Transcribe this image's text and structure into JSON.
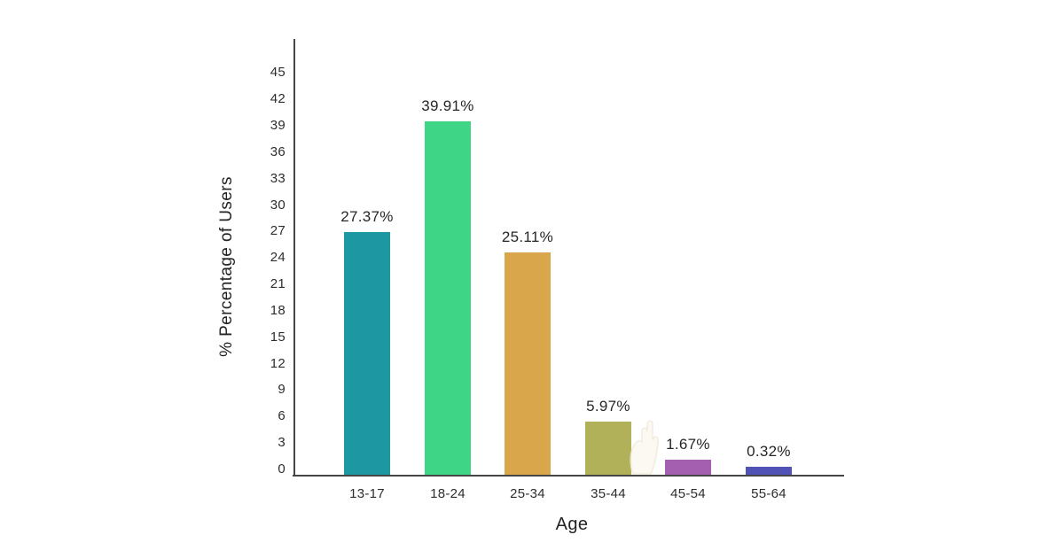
{
  "chart_data": {
    "type": "bar",
    "categories": [
      "13-17",
      "18-24",
      "25-34",
      "35-44",
      "45-54",
      "55-64"
    ],
    "values": [
      27.37,
      39.91,
      25.11,
      5.97,
      1.67,
      0.32
    ],
    "value_labels": [
      "27.37%",
      "39.91%",
      "25.11%",
      "5.97%",
      "1.67%",
      "0.32%"
    ],
    "bar_colors": [
      "#1d98a3",
      "#3ed586",
      "#d9a64b",
      "#b0b159",
      "#a55fb0",
      "#5052b6"
    ],
    "title": "",
    "xlabel": "Age",
    "ylabel": "% Percentage of Users",
    "ylim": [
      0,
      45
    ],
    "ytick_step": 3,
    "yticks": [
      0,
      3,
      6,
      9,
      12,
      15,
      18,
      21,
      24,
      27,
      30,
      33,
      36,
      39,
      42,
      45
    ],
    "grid": false,
    "legend": "none",
    "axis_color": "#454545",
    "text_color": "#2d2d2d",
    "background": "#ffffff",
    "watermark_icon": "faint-hand-watermark"
  }
}
